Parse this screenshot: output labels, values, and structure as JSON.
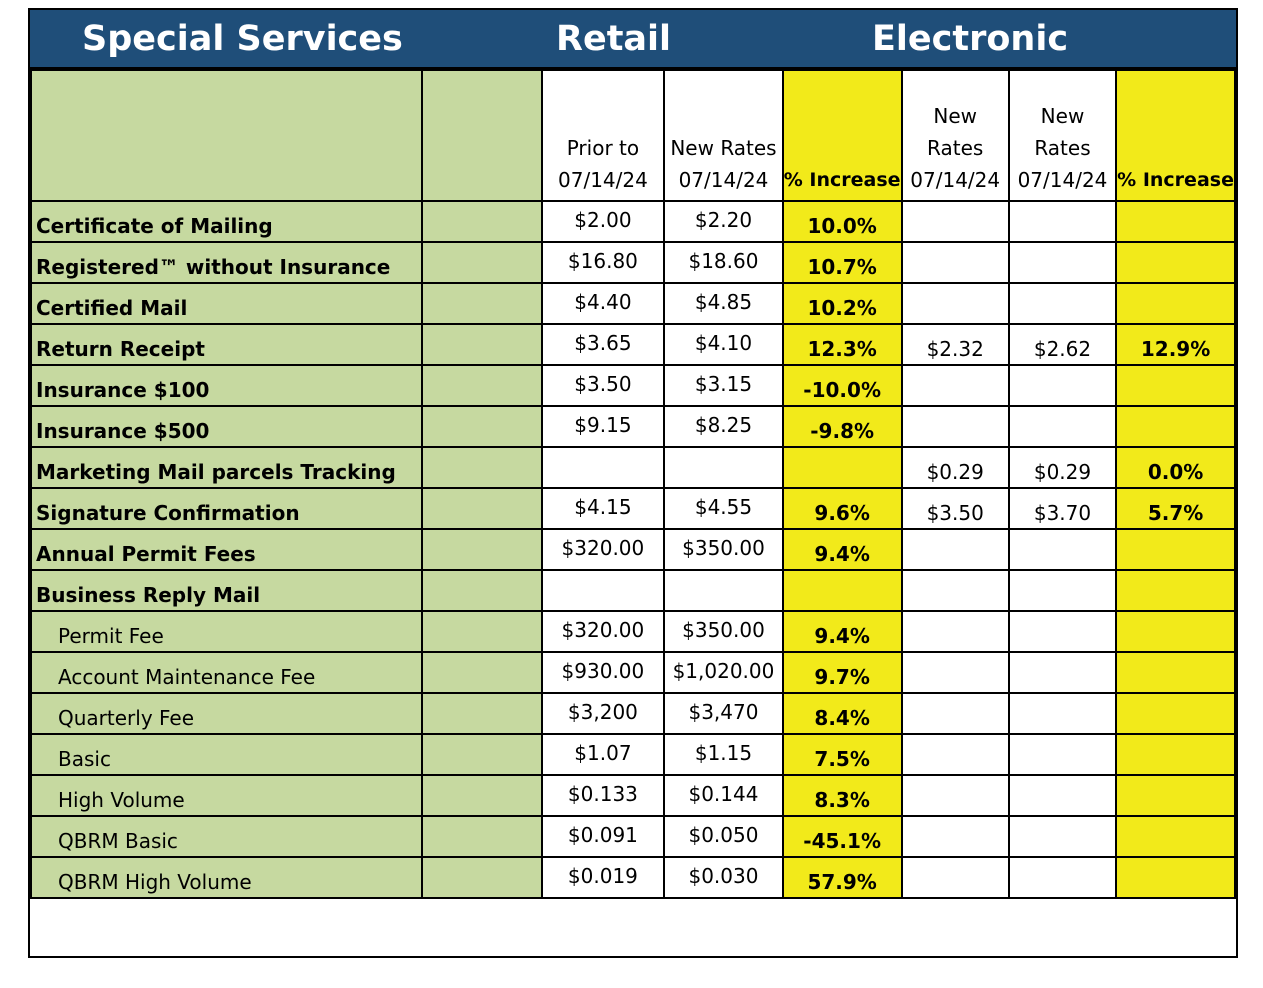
{
  "title_bar": {
    "special_services": "Special Services",
    "retail": "Retail",
    "electronic": "Electronic"
  },
  "header": {
    "retail_prior_line1": "Prior to",
    "retail_prior_line2": "07/14/24",
    "retail_new_line1": "New Rates",
    "retail_new_line2": "07/14/24",
    "retail_pct": "% Increase",
    "elec_a_line1": "New",
    "elec_a_line2": "Rates",
    "elec_a_line3": "07/14/24",
    "elec_b_line1": "New",
    "elec_b_line2": "Rates",
    "elec_b_line3": "07/14/24",
    "elec_pct": "% Increase"
  },
  "rows": [
    {
      "label": "Certificate of Mailing",
      "sub": false,
      "retail_prior": "$2.00",
      "retail_new": "$2.20",
      "retail_pct": "10.0%",
      "elec_a": "",
      "elec_b": "",
      "elec_pct": ""
    },
    {
      "label": "Registered™ without Insurance",
      "sub": false,
      "retail_prior": "$16.80",
      "retail_new": "$18.60",
      "retail_pct": "10.7%",
      "elec_a": "",
      "elec_b": "",
      "elec_pct": ""
    },
    {
      "label": "Certified Mail",
      "sub": false,
      "retail_prior": "$4.40",
      "retail_new": "$4.85",
      "retail_pct": "10.2%",
      "elec_a": "",
      "elec_b": "",
      "elec_pct": ""
    },
    {
      "label": "Return Receipt",
      "sub": false,
      "retail_prior": "$3.65",
      "retail_new": "$4.10",
      "retail_pct": "12.3%",
      "elec_a": "$2.32",
      "elec_b": "$2.62",
      "elec_pct": "12.9%"
    },
    {
      "label": "Insurance $100",
      "sub": false,
      "retail_prior": "$3.50",
      "retail_new": "$3.15",
      "retail_pct": "-10.0%",
      "elec_a": "",
      "elec_b": "",
      "elec_pct": ""
    },
    {
      "label": "Insurance $500",
      "sub": false,
      "retail_prior": "$9.15",
      "retail_new": "$8.25",
      "retail_pct": "-9.8%",
      "elec_a": "",
      "elec_b": "",
      "elec_pct": ""
    },
    {
      "label": "Marketing Mail   parcels Tracking",
      "sub": false,
      "retail_prior": "",
      "retail_new": "",
      "retail_pct": "",
      "elec_a": "$0.29",
      "elec_b": "$0.29",
      "elec_pct": "0.0%"
    },
    {
      "label": "Signature Confirmation",
      "sub": false,
      "retail_prior": "$4.15",
      "retail_new": "$4.55",
      "retail_pct": "9.6%",
      "elec_a": "$3.50",
      "elec_b": "$3.70",
      "elec_pct": "5.7%"
    },
    {
      "label": "Annual Permit Fees",
      "sub": false,
      "retail_prior": "$320.00",
      "retail_new": "$350.00",
      "retail_pct": "9.4%",
      "elec_a": "",
      "elec_b": "",
      "elec_pct": ""
    },
    {
      "label": "Business Reply Mail",
      "sub": false,
      "retail_prior": "",
      "retail_new": "",
      "retail_pct": "",
      "elec_a": "",
      "elec_b": "",
      "elec_pct": ""
    },
    {
      "label": "Permit Fee",
      "sub": true,
      "retail_prior": "$320.00",
      "retail_new": "$350.00",
      "retail_pct": "9.4%",
      "elec_a": "",
      "elec_b": "",
      "elec_pct": ""
    },
    {
      "label": "Account Maintenance Fee",
      "sub": true,
      "retail_prior": "$930.00",
      "retail_new": "$1,020.00",
      "retail_pct": "9.7%",
      "elec_a": "",
      "elec_b": "",
      "elec_pct": ""
    },
    {
      "label": "Quarterly Fee",
      "sub": true,
      "retail_prior": "$3,200",
      "retail_new": "$3,470",
      "retail_pct": "8.4%",
      "elec_a": "",
      "elec_b": "",
      "elec_pct": ""
    },
    {
      "label": "Basic",
      "sub": true,
      "retail_prior": "$1.07",
      "retail_new": "$1.15",
      "retail_pct": "7.5%",
      "elec_a": "",
      "elec_b": "",
      "elec_pct": ""
    },
    {
      "label": "High Volume",
      "sub": true,
      "retail_prior": "$0.133",
      "retail_new": "$0.144",
      "retail_pct": "8.3%",
      "elec_a": "",
      "elec_b": "",
      "elec_pct": ""
    },
    {
      "label": "QBRM Basic",
      "sub": true,
      "retail_prior": "$0.091",
      "retail_new": "$0.050",
      "retail_pct": "-45.1%",
      "elec_a": "",
      "elec_b": "",
      "elec_pct": ""
    },
    {
      "label": "QBRM High Volume",
      "sub": true,
      "retail_prior": "$0.019",
      "retail_new": "$0.030",
      "retail_pct": "57.9%",
      "elec_a": "",
      "elec_b": "",
      "elec_pct": ""
    }
  ],
  "colors": {
    "title_bar_bg": "#1f4e79",
    "label_green": "#c6d9a0",
    "pct_yellow": "#f2ea1a"
  }
}
